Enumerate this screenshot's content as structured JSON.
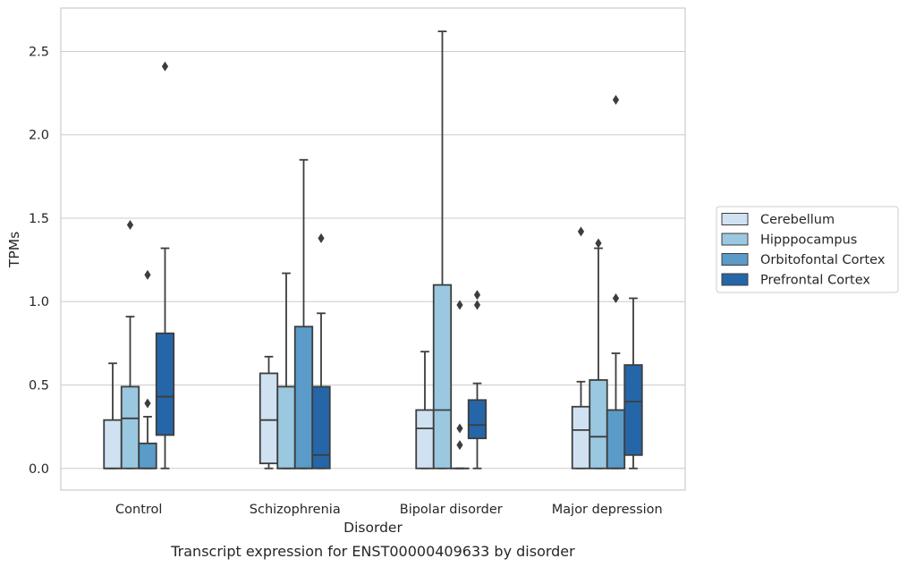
{
  "chart_data": {
    "type": "box",
    "caption": "Transcript expression for ENST00000409633 by disorder",
    "xlabel": "Disorder",
    "ylabel": "TPMs",
    "ylim": [
      -0.13,
      2.76
    ],
    "yticks": [
      0.0,
      0.5,
      1.0,
      1.5,
      2.0,
      2.5
    ],
    "ytick_labels": [
      "0.0",
      "0.5",
      "1.0",
      "1.5",
      "2.0",
      "2.5"
    ],
    "grid": "horizontal",
    "legend_position": "right",
    "categories": [
      "Control",
      "Schizophrenia",
      "Bipolar disorder",
      "Major depression"
    ],
    "series": [
      {
        "name": "Cerebellum",
        "color": "#d0e1f2",
        "boxes": [
          {
            "whisker_low": 0.0,
            "q1": 0.0,
            "median": 0.0,
            "q3": 0.29,
            "whisker_high": 0.63,
            "outliers": []
          },
          {
            "whisker_low": 0.0,
            "q1": 0.03,
            "median": 0.29,
            "q3": 0.57,
            "whisker_high": 0.67,
            "outliers": []
          },
          {
            "whisker_low": 0.0,
            "q1": 0.0,
            "median": 0.24,
            "q3": 0.35,
            "whisker_high": 0.7,
            "outliers": []
          },
          {
            "whisker_low": 0.0,
            "q1": 0.0,
            "median": 0.23,
            "q3": 0.37,
            "whisker_high": 0.52,
            "outliers": [
              1.42
            ]
          }
        ]
      },
      {
        "name": "Hipppocampus",
        "color": "#9ac8e0",
        "boxes": [
          {
            "whisker_low": 0.0,
            "q1": 0.0,
            "median": 0.3,
            "q3": 0.49,
            "whisker_high": 0.91,
            "outliers": [
              1.46
            ]
          },
          {
            "whisker_low": 0.0,
            "q1": 0.0,
            "median": 0.0,
            "q3": 0.49,
            "whisker_high": 1.17,
            "outliers": []
          },
          {
            "whisker_low": 0.0,
            "q1": 0.0,
            "median": 0.35,
            "q3": 1.1,
            "whisker_high": 2.62,
            "outliers": []
          },
          {
            "whisker_low": 0.0,
            "q1": 0.0,
            "median": 0.19,
            "q3": 0.53,
            "whisker_high": 1.32,
            "outliers": [
              1.35
            ]
          }
        ]
      },
      {
        "name": "Orbitofontal Cortex",
        "color": "#5a9bc9",
        "boxes": [
          {
            "whisker_low": 0.0,
            "q1": 0.0,
            "median": 0.0,
            "q3": 0.15,
            "whisker_high": 0.31,
            "outliers": [
              0.39,
              1.16
            ]
          },
          {
            "whisker_low": 0.0,
            "q1": 0.0,
            "median": 0.0,
            "q3": 0.85,
            "whisker_high": 1.85,
            "outliers": []
          },
          {
            "whisker_low": 0.0,
            "q1": 0.0,
            "median": 0.0,
            "q3": 0.0,
            "whisker_high": 0.0,
            "outliers": [
              0.14,
              0.24,
              0.98
            ]
          },
          {
            "whisker_low": 0.0,
            "q1": 0.0,
            "median": 0.0,
            "q3": 0.35,
            "whisker_high": 0.69,
            "outliers": [
              1.02,
              2.21
            ]
          }
        ]
      },
      {
        "name": "Prefrontal Cortex",
        "color": "#2566a8",
        "boxes": [
          {
            "whisker_low": 0.0,
            "q1": 0.2,
            "median": 0.43,
            "q3": 0.81,
            "whisker_high": 1.32,
            "outliers": [
              2.41
            ]
          },
          {
            "whisker_low": 0.0,
            "q1": 0.0,
            "median": 0.08,
            "q3": 0.49,
            "whisker_high": 0.93,
            "outliers": [
              1.38
            ]
          },
          {
            "whisker_low": 0.0,
            "q1": 0.18,
            "median": 0.26,
            "q3": 0.41,
            "whisker_high": 0.51,
            "outliers": [
              0.98,
              1.04
            ]
          },
          {
            "whisker_low": 0.0,
            "q1": 0.08,
            "median": 0.4,
            "q3": 0.62,
            "whisker_high": 1.02,
            "outliers": []
          }
        ]
      }
    ]
  }
}
